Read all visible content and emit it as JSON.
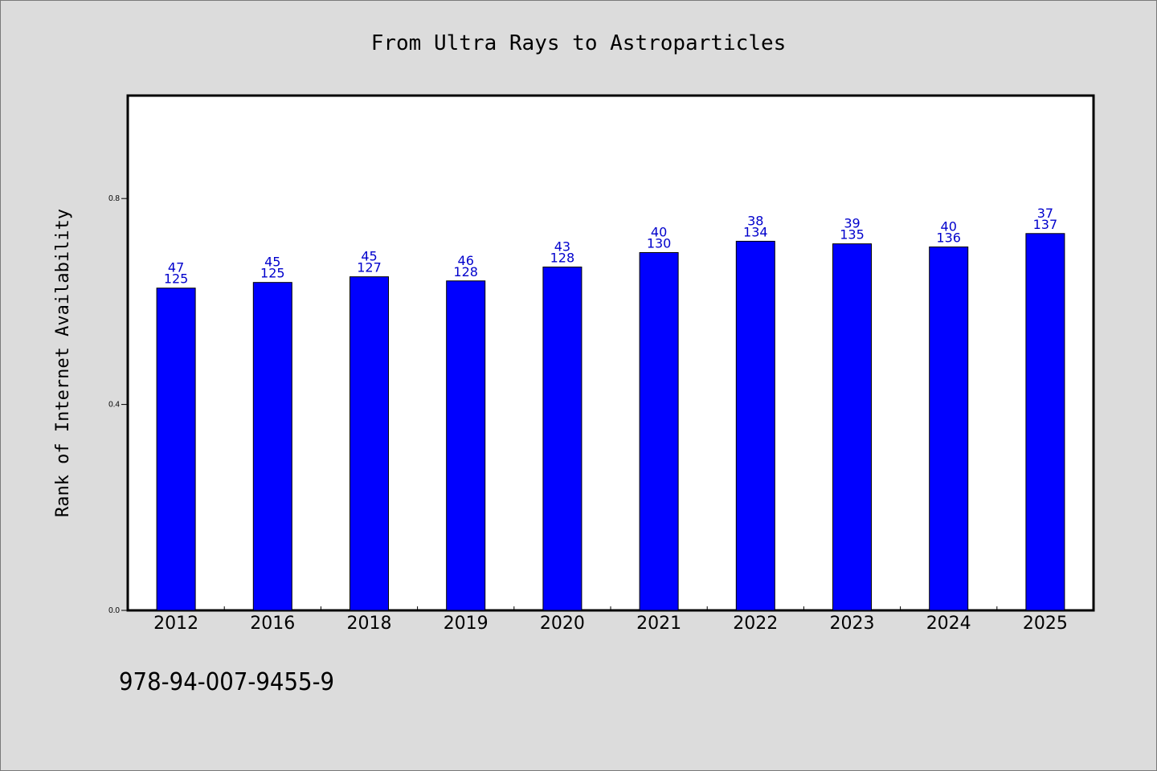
{
  "chart_data": {
    "type": "bar",
    "title": "From Ultra Rays to Astroparticles",
    "xlabel": "",
    "ylabel": "Rank of Internet Availability",
    "categories": [
      "2012",
      "2016",
      "2018",
      "2019",
      "2020",
      "2021",
      "2022",
      "2023",
      "2024",
      "2025"
    ],
    "values": [
      0.626,
      0.637,
      0.648,
      0.64,
      0.667,
      0.695,
      0.717,
      0.712,
      0.706,
      0.732
    ],
    "labels_top": [
      "47",
      "45",
      "45",
      "46",
      "43",
      "40",
      "38",
      "39",
      "40",
      "37"
    ],
    "labels_bottom": [
      "125",
      "125",
      "127",
      "128",
      "128",
      "130",
      "134",
      "135",
      "136",
      "137"
    ],
    "ylim": [
      0,
      1.0
    ],
    "yticks": [
      0.0,
      0.4,
      0.8
    ],
    "ytick_labels": [
      "0.0",
      "0.4",
      "0.8"
    ],
    "bar_color": "#0000ff",
    "label_color": "#0000cc",
    "grid": false
  },
  "footer": {
    "isbn": "978-94-007-9455-9"
  }
}
